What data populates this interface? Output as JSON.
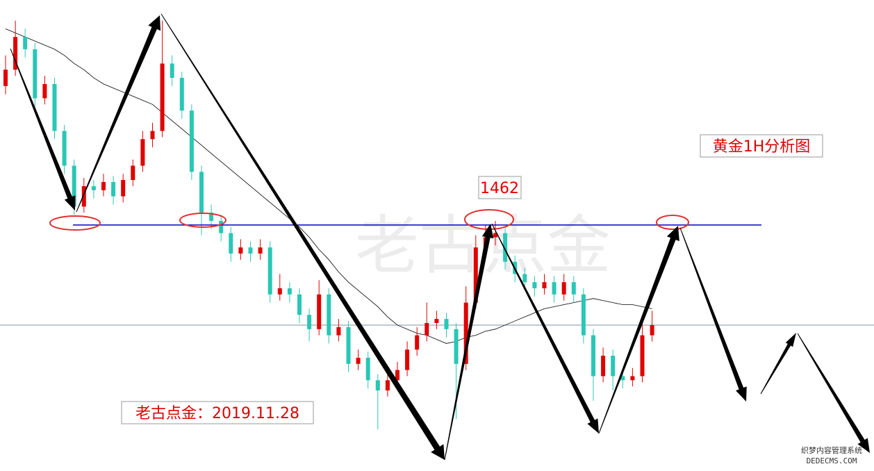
{
  "chart_data": {
    "type": "candlestick",
    "title": "黄金1H分析图",
    "level_label": "1462",
    "level": 1462,
    "note": "老古点金：2019.11.28",
    "watermark": "老古点金",
    "corner_text": [
      "织梦内容管理系统",
      "DEDECMS.COM"
    ],
    "ylim": [
      1450.4,
      1472.5
    ],
    "up_color": "#e00000",
    "down_color": "#29c7b5",
    "level_color": "#0000c8",
    "ma_color": "#000000",
    "price_line": 1457.1,
    "candles": [
      [
        1468.8,
        1470.3,
        1468.4,
        1469.6
      ],
      [
        1469.6,
        1472.0,
        1469.3,
        1471.2
      ],
      [
        1471.2,
        1471.6,
        1470.2,
        1470.6
      ],
      [
        1470.6,
        1470.9,
        1467.8,
        1468.2
      ],
      [
        1468.2,
        1469.3,
        1467.9,
        1468.9
      ],
      [
        1468.9,
        1469.2,
        1466.2,
        1466.6
      ],
      [
        1466.6,
        1466.9,
        1464.5,
        1464.9
      ],
      [
        1464.9,
        1465.2,
        1462.5,
        1462.9
      ],
      [
        1462.9,
        1464.3,
        1462.6,
        1463.9
      ],
      [
        1463.9,
        1464.2,
        1463.3,
        1463.7
      ],
      [
        1463.7,
        1464.5,
        1463.4,
        1464.1
      ],
      [
        1464.1,
        1464.4,
        1463.0,
        1463.4
      ],
      [
        1463.4,
        1464.5,
        1463.1,
        1464.2
      ],
      [
        1464.2,
        1465.2,
        1463.9,
        1464.9
      ],
      [
        1464.9,
        1466.6,
        1464.6,
        1466.2
      ],
      [
        1466.2,
        1467.0,
        1465.8,
        1466.6
      ],
      [
        1466.6,
        1472.0,
        1466.3,
        1469.9
      ],
      [
        1469.9,
        1470.3,
        1468.8,
        1469.2
      ],
      [
        1469.2,
        1469.5,
        1467.2,
        1467.6
      ],
      [
        1467.6,
        1467.9,
        1464.2,
        1464.6
      ],
      [
        1464.6,
        1464.9,
        1461.5,
        1462.6
      ],
      [
        1462.6,
        1463.0,
        1461.8,
        1462.2
      ],
      [
        1462.2,
        1462.5,
        1461.2,
        1461.6
      ],
      [
        1461.6,
        1461.9,
        1460.2,
        1460.6
      ],
      [
        1460.6,
        1461.3,
        1460.3,
        1460.9
      ],
      [
        1460.9,
        1461.2,
        1460.2,
        1460.6
      ],
      [
        1460.6,
        1461.3,
        1460.3,
        1460.9
      ],
      [
        1460.9,
        1461.2,
        1458.2,
        1458.6
      ],
      [
        1458.6,
        1459.6,
        1458.3,
        1458.9
      ],
      [
        1458.9,
        1459.2,
        1458.2,
        1458.6
      ],
      [
        1458.6,
        1458.9,
        1457.2,
        1457.6
      ],
      [
        1457.6,
        1457.9,
        1456.3,
        1456.9
      ],
      [
        1456.9,
        1459.3,
        1456.6,
        1458.6
      ],
      [
        1458.6,
        1458.9,
        1456.2,
        1456.6
      ],
      [
        1456.6,
        1457.4,
        1456.3,
        1457.0
      ],
      [
        1457.0,
        1457.3,
        1454.8,
        1455.2
      ],
      [
        1455.2,
        1455.9,
        1454.9,
        1455.5
      ],
      [
        1455.5,
        1455.8,
        1454.0,
        1454.4
      ],
      [
        1454.4,
        1454.7,
        1452.0,
        1453.9
      ],
      [
        1453.9,
        1454.8,
        1453.6,
        1454.4
      ],
      [
        1454.4,
        1455.3,
        1454.1,
        1454.9
      ],
      [
        1454.9,
        1456.3,
        1454.6,
        1455.9
      ],
      [
        1455.9,
        1457.0,
        1455.6,
        1456.6
      ],
      [
        1456.6,
        1458.2,
        1456.3,
        1457.2
      ],
      [
        1457.2,
        1457.8,
        1456.9,
        1457.4
      ],
      [
        1457.4,
        1457.7,
        1456.5,
        1456.9
      ],
      [
        1456.9,
        1457.2,
        1452.5,
        1455.2
      ],
      [
        1455.2,
        1459.0,
        1454.9,
        1458.2
      ],
      [
        1458.2,
        1461.5,
        1457.9,
        1460.9
      ],
      [
        1460.9,
        1462.0,
        1460.6,
        1461.4
      ],
      [
        1461.4,
        1462.2,
        1461.0,
        1461.6
      ],
      [
        1461.6,
        1461.9,
        1459.8,
        1460.2
      ],
      [
        1460.2,
        1460.5,
        1459.2,
        1459.6
      ],
      [
        1459.6,
        1459.9,
        1458.8,
        1459.2
      ],
      [
        1459.2,
        1459.5,
        1458.5,
        1458.9
      ],
      [
        1458.9,
        1459.6,
        1458.6,
        1459.2
      ],
      [
        1459.2,
        1459.5,
        1458.2,
        1458.6
      ],
      [
        1458.6,
        1459.6,
        1458.3,
        1459.2
      ],
      [
        1459.2,
        1459.5,
        1458.2,
        1458.6
      ],
      [
        1458.6,
        1458.9,
        1456.2,
        1456.6
      ],
      [
        1456.6,
        1456.9,
        1453.4,
        1454.6
      ],
      [
        1454.6,
        1456.0,
        1454.3,
        1455.6
      ],
      [
        1455.6,
        1455.9,
        1453.9,
        1454.6
      ],
      [
        1454.6,
        1454.9,
        1454.0,
        1454.4
      ],
      [
        1454.4,
        1455.0,
        1454.1,
        1454.6
      ],
      [
        1454.6,
        1457.6,
        1454.3,
        1456.6
      ],
      [
        1456.6,
        1457.8,
        1456.3,
        1457.1
      ]
    ],
    "ma_values": [
      1471.6,
      1471.4,
      1471.2,
      1471.0,
      1470.8,
      1470.6,
      1470.3,
      1469.9,
      1469.6,
      1469.2,
      1468.9,
      1468.7,
      1468.5,
      1468.3,
      1468.1,
      1467.9,
      1467.5,
      1467.1,
      1466.7,
      1466.3,
      1465.9,
      1465.5,
      1465.1,
      1464.7,
      1464.3,
      1463.9,
      1463.5,
      1463.1,
      1462.7,
      1462.3,
      1461.9,
      1461.4,
      1460.8,
      1460.3,
      1459.7,
      1459.2,
      1458.8,
      1458.4,
      1458.0,
      1457.5,
      1457.1,
      1456.9,
      1456.7,
      1456.6,
      1456.4,
      1456.2,
      1456.3,
      1456.5,
      1456.6,
      1456.8,
      1456.9,
      1457.1,
      1457.3,
      1457.5,
      1457.7,
      1457.9,
      1458.0,
      1458.1,
      1458.2,
      1458.3,
      1458.4,
      1458.3,
      1458.2,
      1458.1,
      1458.1,
      1458.0,
      1457.9
    ]
  }
}
